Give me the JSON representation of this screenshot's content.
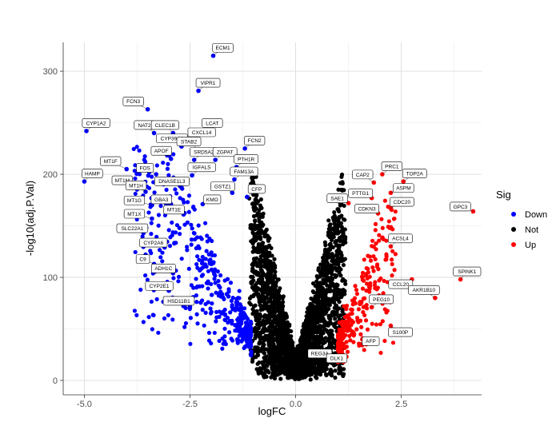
{
  "chart_data": {
    "type": "scatter",
    "title": "",
    "xlabel": "logFC",
    "ylabel": "-log10(adj.P.Val)",
    "xlim": [
      -5.5,
      4.4
    ],
    "ylim": [
      -14,
      328
    ],
    "x_ticks": [
      -5.0,
      -2.5,
      0.0,
      2.5
    ],
    "x_tick_labels": [
      "-5.0",
      "-2.5",
      "0.0",
      "2.5"
    ],
    "y_ticks": [
      0,
      100,
      200,
      300
    ],
    "y_tick_labels": [
      "0",
      "100",
      "200",
      "300"
    ],
    "grid": true,
    "legend": {
      "title": "Sig",
      "position": "right",
      "entries": [
        {
          "name": "Down",
          "color": "#0000ff"
        },
        {
          "name": "Not",
          "color": "#000000"
        },
        {
          "name": "Up",
          "color": "#ff0000"
        }
      ]
    },
    "colors": {
      "Down": "#0000ff",
      "Not": "#000000",
      "Up": "#ff0000"
    },
    "cloud": {
      "seed": 20240517,
      "not_points": 2600,
      "down_points": 430,
      "up_points": 260
    },
    "labeled_genes": [
      {
        "name": "ECM1",
        "x": -1.95,
        "y": 315,
        "sig": "Down"
      },
      {
        "name": "VIPR1",
        "x": -2.3,
        "y": 281,
        "sig": "Down"
      },
      {
        "name": "FCN3",
        "x": -3.5,
        "y": 263,
        "sig": "Down"
      },
      {
        "name": "CYP1A2",
        "x": -4.95,
        "y": 242,
        "sig": "Down"
      },
      {
        "name": "NAT2",
        "x": -3.35,
        "y": 240,
        "sig": "Down"
      },
      {
        "name": "CLEC1B",
        "x": -2.9,
        "y": 240,
        "sig": "Down"
      },
      {
        "name": "LCAT",
        "x": -2.2,
        "y": 242,
        "sig": "Down"
      },
      {
        "name": "CXCL14",
        "x": -2.45,
        "y": 233,
        "sig": "Down"
      },
      {
        "name": "CYP39A1",
        "x": -2.7,
        "y": 227,
        "sig": "Down"
      },
      {
        "name": "STAB2",
        "x": -2.3,
        "y": 224,
        "sig": "Down"
      },
      {
        "name": "FCN2",
        "x": -1.2,
        "y": 225,
        "sig": "Down"
      },
      {
        "name": "APOF",
        "x": -2.95,
        "y": 215,
        "sig": "Down"
      },
      {
        "name": "SRD5A2",
        "x": -2.4,
        "y": 214,
        "sig": "Down"
      },
      {
        "name": "ZGPAT",
        "x": -1.9,
        "y": 214,
        "sig": "Down"
      },
      {
        "name": "MT1F",
        "x": -4.0,
        "y": 205,
        "sig": "Down"
      },
      {
        "name": "PTH1R",
        "x": -1.4,
        "y": 207,
        "sig": "Down"
      },
      {
        "name": "HAMP",
        "x": -5.0,
        "y": 193,
        "sig": "Down"
      },
      {
        "name": "FOS",
        "x": -3.3,
        "y": 200,
        "sig": "Down"
      },
      {
        "name": "IGFALS",
        "x": -2.45,
        "y": 199,
        "sig": "Down"
      },
      {
        "name": "FAM13A",
        "x": -1.45,
        "y": 195,
        "sig": "Down"
      },
      {
        "name": "MT1M",
        "x": -3.8,
        "y": 188,
        "sig": "Down"
      },
      {
        "name": "DNASE1L3",
        "x": -2.7,
        "y": 187,
        "sig": "Down"
      },
      {
        "name": "MT1H",
        "x": -3.55,
        "y": 183,
        "sig": "Down"
      },
      {
        "name": "GSTZ1",
        "x": -1.5,
        "y": 182,
        "sig": "Down"
      },
      {
        "name": "CFP",
        "x": -1.15,
        "y": 178,
        "sig": "Down"
      },
      {
        "name": "MT1G",
        "x": -3.4,
        "y": 170,
        "sig": "Down"
      },
      {
        "name": "GBA3",
        "x": -2.95,
        "y": 171,
        "sig": "Down"
      },
      {
        "name": "KMO",
        "x": -2.2,
        "y": 171,
        "sig": "Down"
      },
      {
        "name": "MT1E",
        "x": -2.65,
        "y": 161,
        "sig": "Down"
      },
      {
        "name": "MT1X",
        "x": -3.4,
        "y": 157,
        "sig": "Down"
      },
      {
        "name": "SLC22A1",
        "x": -3.6,
        "y": 143,
        "sig": "Down"
      },
      {
        "name": "CYP2A6",
        "x": -3.1,
        "y": 129,
        "sig": "Down"
      },
      {
        "name": "C9",
        "x": -3.35,
        "y": 113,
        "sig": "Down"
      },
      {
        "name": "ADH1C",
        "x": -2.9,
        "y": 104,
        "sig": "Down"
      },
      {
        "name": "CYP2E1",
        "x": -3.0,
        "y": 87,
        "sig": "Down"
      },
      {
        "name": "HSD11B1",
        "x": -2.5,
        "y": 71,
        "sig": "Down"
      },
      {
        "name": "PRC1",
        "x": 2.05,
        "y": 200,
        "sig": "Up"
      },
      {
        "name": "TOP2A",
        "x": 2.55,
        "y": 193,
        "sig": "Up"
      },
      {
        "name": "CAP2",
        "x": 1.85,
        "y": 192,
        "sig": "Up"
      },
      {
        "name": "ASPM",
        "x": 2.25,
        "y": 182,
        "sig": "Up"
      },
      {
        "name": "SAE1",
        "x": 1.25,
        "y": 172,
        "sig": "Up"
      },
      {
        "name": "PTTG1",
        "x": 1.8,
        "y": 177,
        "sig": "Up"
      },
      {
        "name": "CDC20",
        "x": 2.25,
        "y": 167,
        "sig": "Up"
      },
      {
        "name": "GPC3",
        "x": 4.2,
        "y": 164,
        "sig": "Up"
      },
      {
        "name": "CDKN3",
        "x": 1.95,
        "y": 162,
        "sig": "Up"
      },
      {
        "name": "ACSL4",
        "x": 2.25,
        "y": 130,
        "sig": "Up"
      },
      {
        "name": "SPINK1",
        "x": 3.9,
        "y": 98,
        "sig": "Up"
      },
      {
        "name": "CCL20",
        "x": 2.75,
        "y": 98,
        "sig": "Up"
      },
      {
        "name": "AKR1B10",
        "x": 3.3,
        "y": 80,
        "sig": "Up"
      },
      {
        "name": "PEG10",
        "x": 1.8,
        "y": 71,
        "sig": "Up"
      },
      {
        "name": "S100P",
        "x": 2.25,
        "y": 53,
        "sig": "Up"
      },
      {
        "name": "AFP",
        "x": 1.55,
        "y": 35,
        "sig": "Up"
      },
      {
        "name": "REG3A",
        "x": 0.8,
        "y": 23,
        "sig": "Up"
      },
      {
        "name": "DLK1",
        "x": 1.2,
        "y": 23,
        "sig": "Up"
      }
    ]
  }
}
